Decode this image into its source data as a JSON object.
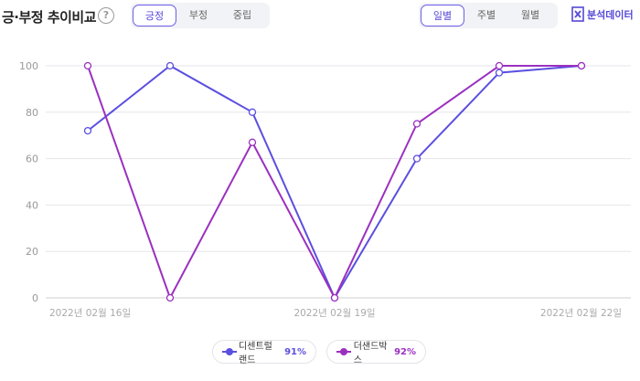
{
  "header": {
    "title": "긍·부정 추이비교",
    "help_icon": "?",
    "sentiment_tabs": [
      {
        "label": "긍정",
        "active": true
      },
      {
        "label": "부정",
        "active": false
      },
      {
        "label": "중립",
        "active": false
      }
    ],
    "period_tabs": [
      {
        "label": "일별",
        "active": true
      },
      {
        "label": "주별",
        "active": false
      },
      {
        "label": "월별",
        "active": false
      }
    ],
    "export_label": "분석데이터",
    "export_icon": "excel-icon",
    "accent_color": "#5548d8"
  },
  "chart_data": {
    "type": "line",
    "x": [
      "2022년 02월 16일",
      "2022년 02월 17일",
      "2022년 02월 18일",
      "2022년 02월 19일",
      "2022년 02월 20일",
      "2022년 02월 21일",
      "2022년 02월 22일"
    ],
    "x_tick_labels": [
      "2022년 02월 16일",
      "",
      "",
      "2022년 02월 19일",
      "",
      "",
      "2022년 02월 22일"
    ],
    "ylim": [
      0,
      100
    ],
    "y_ticks": [
      0,
      20,
      40,
      60,
      80,
      100
    ],
    "grid": true,
    "series": [
      {
        "name": "디센트럴랜드",
        "color": "#5b4fe0",
        "values": [
          72,
          100,
          80,
          0,
          60,
          97,
          100
        ],
        "percent": "91%"
      },
      {
        "name": "더샌드박스",
        "color": "#9b30c0",
        "values": [
          100,
          0,
          67,
          0,
          75,
          100,
          100
        ],
        "percent": "92%"
      }
    ],
    "legend_position": "bottom-center"
  }
}
